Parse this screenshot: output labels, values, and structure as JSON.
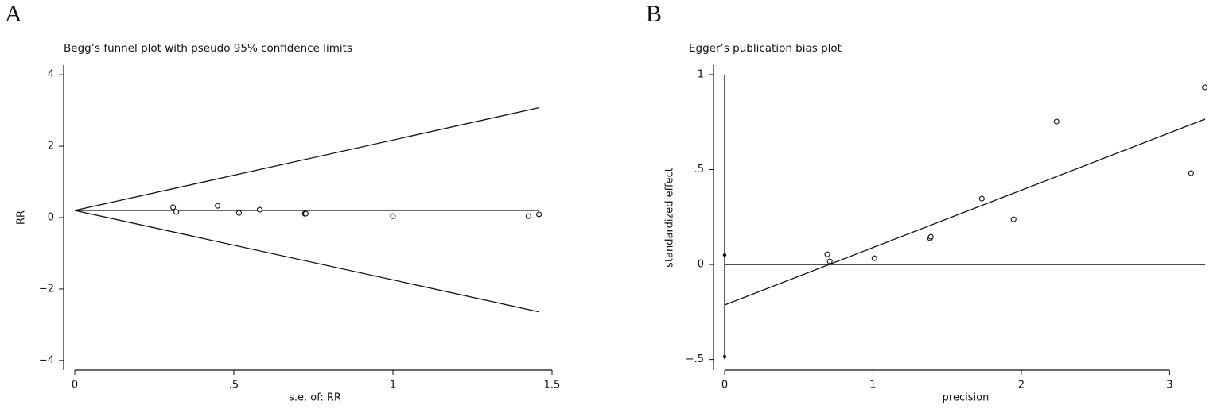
{
  "chart_data": [
    {
      "type": "scatter",
      "panel_label": "A",
      "title": "Begg’s funnel plot with pseudo 95% confidence limits",
      "y_label": "RR",
      "x_label": "s.e. of: RR",
      "xlim": [
        -0.035,
        1.545
      ],
      "ylim": [
        -4.27,
        4.27
      ],
      "xticks": [
        0,
        {
          "value": 0.5,
          "label": ".5"
        },
        1,
        1.5
      ],
      "yticks": [
        {
          "value": -4,
          "label": "−4"
        },
        {
          "value": -2,
          "label": "−2"
        },
        0,
        2,
        4
      ],
      "points": {
        "x": [
          0.309,
          0.319,
          0.449,
          0.516,
          0.581,
          0.723,
          0.726,
          1.0,
          1.426,
          1.459
        ],
        "values": [
          0.29,
          0.16,
          0.33,
          0.13,
          0.22,
          0.11,
          0.11,
          0.04,
          0.04,
          0.09
        ]
      },
      "lines": [
        {
          "x": [
            0,
            1.46
          ],
          "values": [
            0.2,
            0.2
          ]
        },
        {
          "x": [
            0,
            1.46
          ],
          "values": [
            0.2,
            3.08
          ]
        },
        {
          "x": [
            0,
            1.46
          ],
          "values": [
            0.2,
            -2.64
          ]
        }
      ]
    },
    {
      "type": "scatter",
      "panel_label": "B",
      "title": "Egger’s publication bias plot",
      "y_label": "standardized effect",
      "x_label": "precision",
      "xlim": [
        -0.075,
        3.25
      ],
      "ylim": [
        -0.556,
        1.05
      ],
      "xticks": [
        0,
        1,
        2,
        3
      ],
      "yticks": [
        {
          "value": -0.5,
          "label": "−.5"
        },
        0,
        {
          "value": 0.5,
          "label": ".5"
        },
        1
      ],
      "points": {
        "x": [
          0.692,
          0.709,
          1.01,
          1.385,
          1.39,
          1.734,
          1.948,
          2.238,
          3.145,
          3.237
        ],
        "values": [
          0.054,
          0.017,
          0.033,
          0.138,
          0.146,
          0.347,
          0.238,
          0.753,
          0.481,
          0.933
        ]
      },
      "markers": {
        "x": [
          0,
          0
        ],
        "values": [
          0.05,
          -0.485
        ]
      },
      "lines": [
        {
          "x": [
            0,
            0
          ],
          "values": [
            1,
            -0.48
          ]
        },
        {
          "x": [
            0,
            3.24
          ],
          "values": [
            0,
            0
          ]
        },
        {
          "x": [
            0,
            3.24
          ],
          "values": [
            -0.213,
            0.766
          ]
        }
      ]
    }
  ]
}
